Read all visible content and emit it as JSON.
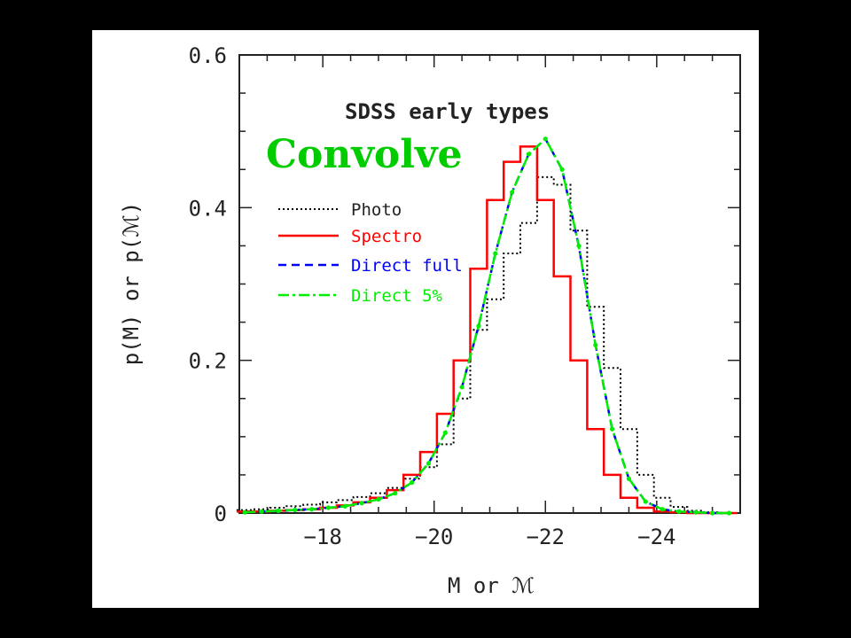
{
  "overlay_label": "Convolve",
  "colors": {
    "photo": "#000000",
    "spectro": "#ff0000",
    "direct_full": "#0000ff",
    "direct_5": "#00ee00",
    "overlay": "#00cc00"
  },
  "chart_data": {
    "type": "line",
    "title": "SDSS early types",
    "xlabel": "M or ℳ",
    "ylabel": "p(M) or p(ℳ)",
    "xlim": [
      -16.5,
      -25.5
    ],
    "ylim": [
      0,
      0.6
    ],
    "x_ticks": [
      -18,
      -20,
      -22,
      -24
    ],
    "x_tick_labels": [
      "−18",
      "−20",
      "−22",
      "−24"
    ],
    "y_ticks": [
      0,
      0.2,
      0.4,
      0.6
    ],
    "y_tick_labels": [
      "0",
      "0.2",
      "0.4",
      "0.6"
    ],
    "x": [
      -16.6,
      -16.9,
      -17.2,
      -17.5,
      -17.8,
      -18.1,
      -18.4,
      -18.7,
      -19.0,
      -19.3,
      -19.6,
      -19.9,
      -20.2,
      -20.5,
      -20.8,
      -21.1,
      -21.4,
      -21.7,
      -22.0,
      -22.3,
      -22.6,
      -22.9,
      -23.2,
      -23.5,
      -23.8,
      -24.1,
      -24.4,
      -24.7,
      -25.0,
      -25.3
    ],
    "series": [
      {
        "name": "Photo",
        "style": "dotted-step",
        "values": [
          0.004,
          0.005,
          0.007,
          0.009,
          0.011,
          0.014,
          0.017,
          0.021,
          0.026,
          0.033,
          0.045,
          0.06,
          0.09,
          0.15,
          0.24,
          0.28,
          0.34,
          0.38,
          0.44,
          0.43,
          0.37,
          0.27,
          0.19,
          0.11,
          0.05,
          0.02,
          0.008,
          0.003,
          0.001,
          0.0
        ]
      },
      {
        "name": "Spectro",
        "style": "solid-step",
        "values": [
          0.002,
          0.002,
          0.003,
          0.004,
          0.005,
          0.007,
          0.01,
          0.014,
          0.02,
          0.03,
          0.05,
          0.08,
          0.13,
          0.2,
          0.32,
          0.41,
          0.46,
          0.48,
          0.41,
          0.31,
          0.2,
          0.11,
          0.05,
          0.02,
          0.007,
          0.002,
          0.001,
          0.0,
          0.0,
          0.0
        ]
      },
      {
        "name": "Direct full",
        "style": "dashed-curve",
        "values": [
          0.001,
          0.002,
          0.003,
          0.004,
          0.005,
          0.007,
          0.009,
          0.013,
          0.018,
          0.026,
          0.04,
          0.065,
          0.105,
          0.165,
          0.245,
          0.34,
          0.42,
          0.47,
          0.49,
          0.45,
          0.35,
          0.22,
          0.11,
          0.045,
          0.015,
          0.005,
          0.002,
          0.001,
          0.0,
          0.0
        ]
      },
      {
        "name": "Direct 5%",
        "style": "dot-dash-curve",
        "values": [
          0.001,
          0.002,
          0.003,
          0.004,
          0.005,
          0.007,
          0.009,
          0.013,
          0.018,
          0.026,
          0.04,
          0.065,
          0.105,
          0.165,
          0.245,
          0.34,
          0.42,
          0.47,
          0.49,
          0.45,
          0.35,
          0.22,
          0.11,
          0.045,
          0.015,
          0.005,
          0.002,
          0.001,
          0.0,
          0.0
        ]
      }
    ],
    "legend": [
      {
        "label": "Photo",
        "color": "#000000"
      },
      {
        "label": "Spectro",
        "color": "#ff0000"
      },
      {
        "label": "Direct full",
        "color": "#0000ff"
      },
      {
        "label": "Direct 5%",
        "color": "#00ee00"
      }
    ],
    "legend_position": "upper-left"
  }
}
